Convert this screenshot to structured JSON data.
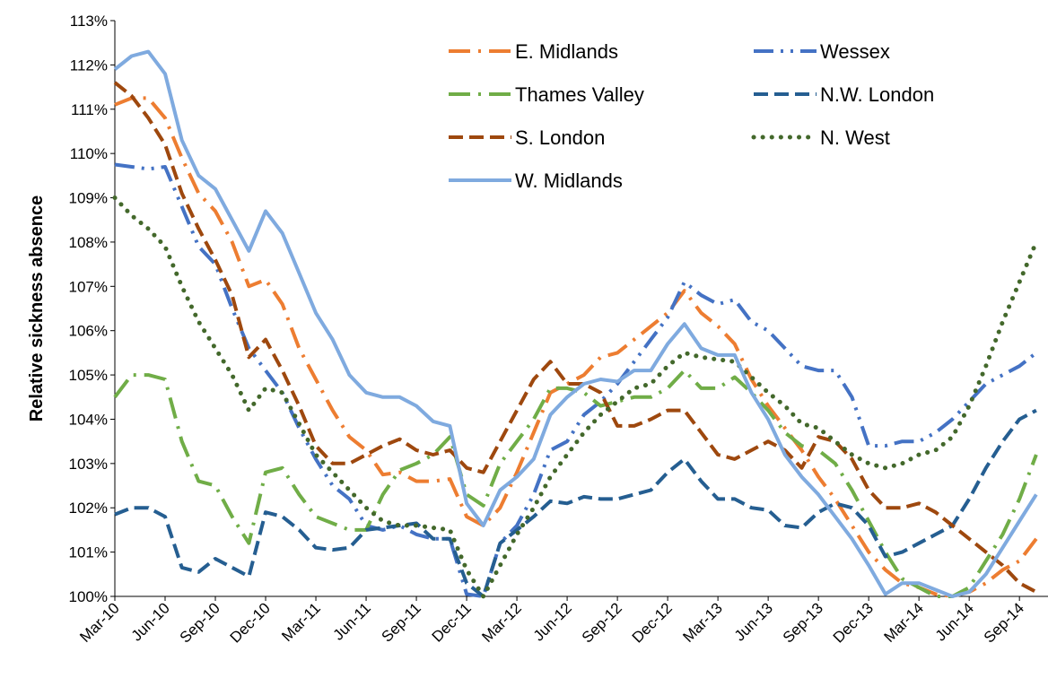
{
  "chart_data": {
    "type": "line",
    "y_label": "Relative sickness absence",
    "categories": [
      "Mar-10",
      null,
      null,
      "Jun-10",
      null,
      null,
      "Sep-10",
      null,
      null,
      "Dec-10",
      null,
      null,
      "Mar-11",
      null,
      null,
      "Jun-11",
      null,
      null,
      "Sep-11",
      null,
      null,
      "Dec-11",
      null,
      null,
      "Mar-12",
      null,
      null,
      "Jun-12",
      null,
      null,
      "Sep-12",
      null,
      null,
      "Dec-12",
      null,
      null,
      "Mar-13",
      null,
      null,
      "Jun-13",
      null,
      null,
      "Sep-13",
      null,
      null,
      "Dec-13",
      null,
      null,
      "Mar-14",
      null,
      null,
      "Jun-14",
      null,
      null,
      "Sep-14",
      null
    ],
    "ylim": [
      100,
      113
    ],
    "yticks": [
      {
        "value": 100,
        "label": "100%"
      },
      {
        "value": 101,
        "label": "101%"
      },
      {
        "value": 102,
        "label": "102%"
      },
      {
        "value": 103,
        "label": "103%"
      },
      {
        "value": 104,
        "label": "104%"
      },
      {
        "value": 105,
        "label": "105%"
      },
      {
        "value": 106,
        "label": "106%"
      },
      {
        "value": 107,
        "label": "107%"
      },
      {
        "value": 108,
        "label": "108%"
      },
      {
        "value": 109,
        "label": "109%"
      },
      {
        "value": 110,
        "label": "110%"
      },
      {
        "value": 111,
        "label": "111%"
      },
      {
        "value": 112,
        "label": "112%"
      },
      {
        "value": 113,
        "label": "113%"
      }
    ],
    "grid": false,
    "legend": "top-right",
    "series": [
      {
        "name": "E. Midlands",
        "color": "#ED7D31",
        "dash": "long-dash-dot",
        "values": [
          111.1,
          111.25,
          111.25,
          110.8,
          109.9,
          109.1,
          108.7,
          108.0,
          107.0,
          107.15,
          106.6,
          105.6,
          104.9,
          104.2,
          103.6,
          103.3,
          102.75,
          102.8,
          102.6,
          102.6,
          102.65,
          101.8,
          101.6,
          102.0,
          102.8,
          103.7,
          104.6,
          104.8,
          105.0,
          105.4,
          105.5,
          105.8,
          106.1,
          106.4,
          106.9,
          106.4,
          106.1,
          105.7,
          104.9,
          104.3,
          103.8,
          103.3,
          102.7,
          102.2,
          101.6,
          101.0,
          100.6,
          100.3,
          100.2,
          100.05,
          100.0,
          100.1,
          100.3,
          100.6,
          100.8,
          101.3
        ]
      },
      {
        "name": "Wessex",
        "color": "#4472C4",
        "dash": "dash-dot-dot",
        "values": [
          109.75,
          109.7,
          109.65,
          109.7,
          108.8,
          107.9,
          107.5,
          106.5,
          105.6,
          105.1,
          104.6,
          103.8,
          103.1,
          102.5,
          102.2,
          101.6,
          101.5,
          101.6,
          101.4,
          101.3,
          101.3,
          100.05,
          100.0,
          101.2,
          101.6,
          102.3,
          103.3,
          103.5,
          104.1,
          104.4,
          104.8,
          105.3,
          105.8,
          106.3,
          107.1,
          106.8,
          106.6,
          106.7,
          106.2,
          106.0,
          105.6,
          105.2,
          105.1,
          105.1,
          104.5,
          103.4,
          103.4,
          103.5,
          103.5,
          103.7,
          104.0,
          104.4,
          104.8,
          105.0,
          105.2,
          105.5
        ]
      },
      {
        "name": "Thames Valley",
        "color": "#70AD47",
        "dash": "long-dash-dot",
        "values": [
          104.5,
          105.0,
          105.0,
          104.9,
          103.5,
          102.6,
          102.5,
          101.8,
          101.2,
          102.8,
          102.9,
          102.3,
          101.8,
          101.65,
          101.5,
          101.5,
          102.3,
          102.85,
          103.0,
          103.2,
          103.6,
          102.3,
          102.05,
          103.0,
          103.5,
          104.0,
          104.7,
          104.7,
          104.6,
          104.3,
          104.4,
          104.5,
          104.5,
          104.7,
          105.1,
          104.7,
          104.7,
          104.95,
          104.6,
          104.2,
          103.7,
          103.4,
          103.3,
          103.0,
          102.4,
          101.7,
          101.0,
          100.4,
          100.2,
          100.0,
          100.0,
          100.2,
          100.8,
          101.4,
          102.2,
          103.2
        ]
      },
      {
        "name": "N.W. London",
        "color": "#255E91",
        "dash": "dash",
        "values": [
          101.85,
          102.0,
          102.0,
          101.8,
          100.65,
          100.55,
          100.85,
          100.65,
          100.45,
          101.9,
          101.8,
          101.5,
          101.1,
          101.05,
          101.1,
          101.5,
          101.55,
          101.6,
          101.65,
          101.3,
          101.3,
          100.3,
          100.0,
          101.2,
          101.5,
          101.8,
          102.15,
          102.1,
          102.25,
          102.2,
          102.2,
          102.3,
          102.4,
          102.8,
          103.1,
          102.6,
          102.2,
          102.2,
          102.0,
          101.95,
          101.6,
          101.55,
          101.9,
          102.1,
          102.0,
          101.6,
          100.9,
          101.0,
          101.2,
          101.4,
          101.6,
          102.2,
          102.9,
          103.5,
          104.0,
          104.2
        ]
      },
      {
        "name": "S. London",
        "color": "#9E480E",
        "dash": "dash",
        "values": [
          111.6,
          111.3,
          110.8,
          110.2,
          109.1,
          108.3,
          107.6,
          106.8,
          105.4,
          105.8,
          105.1,
          104.3,
          103.4,
          103.0,
          103.0,
          103.2,
          103.4,
          103.55,
          103.3,
          103.2,
          103.3,
          102.9,
          102.8,
          103.5,
          104.2,
          104.9,
          105.3,
          104.8,
          104.8,
          104.6,
          103.85,
          103.85,
          104.0,
          104.2,
          104.2,
          103.7,
          103.2,
          103.1,
          103.3,
          103.5,
          103.3,
          102.9,
          103.6,
          103.5,
          103.1,
          102.4,
          102.0,
          102.0,
          102.1,
          101.9,
          101.6,
          101.3,
          101.0,
          100.7,
          100.3,
          100.1
        ]
      },
      {
        "name": "N. West",
        "color": "#43682B",
        "dash": "dot",
        "values": [
          109.0,
          108.6,
          108.3,
          107.9,
          107.0,
          106.2,
          105.6,
          105.0,
          104.2,
          104.7,
          104.6,
          103.9,
          103.2,
          102.8,
          102.4,
          102.0,
          101.7,
          101.6,
          101.6,
          101.55,
          101.5,
          100.6,
          100.0,
          100.7,
          101.4,
          102.0,
          102.7,
          103.2,
          103.7,
          104.1,
          104.4,
          104.7,
          104.8,
          105.2,
          105.5,
          105.4,
          105.35,
          105.3,
          104.95,
          104.6,
          104.3,
          103.9,
          103.8,
          103.5,
          103.2,
          103.0,
          102.9,
          103.0,
          103.2,
          103.3,
          103.6,
          104.3,
          105.2,
          106.2,
          107.1,
          108.0
        ]
      },
      {
        "name": "W. Midlands",
        "color": "#7FAADF",
        "dash": "solid",
        "values": [
          111.9,
          112.2,
          112.3,
          111.8,
          110.3,
          109.5,
          109.2,
          108.5,
          107.8,
          108.7,
          108.2,
          107.3,
          106.4,
          105.8,
          105.0,
          104.6,
          104.5,
          104.5,
          104.3,
          103.95,
          103.85,
          102.1,
          101.6,
          102.4,
          102.7,
          103.1,
          104.1,
          104.5,
          104.8,
          104.9,
          104.85,
          105.1,
          105.1,
          105.7,
          106.15,
          105.6,
          105.45,
          105.45,
          104.6,
          104.0,
          103.2,
          102.7,
          102.3,
          101.8,
          101.3,
          100.7,
          100.05,
          100.3,
          100.3,
          100.15,
          100.0,
          100.1,
          100.5,
          101.1,
          101.7,
          102.3
        ]
      }
    ]
  }
}
